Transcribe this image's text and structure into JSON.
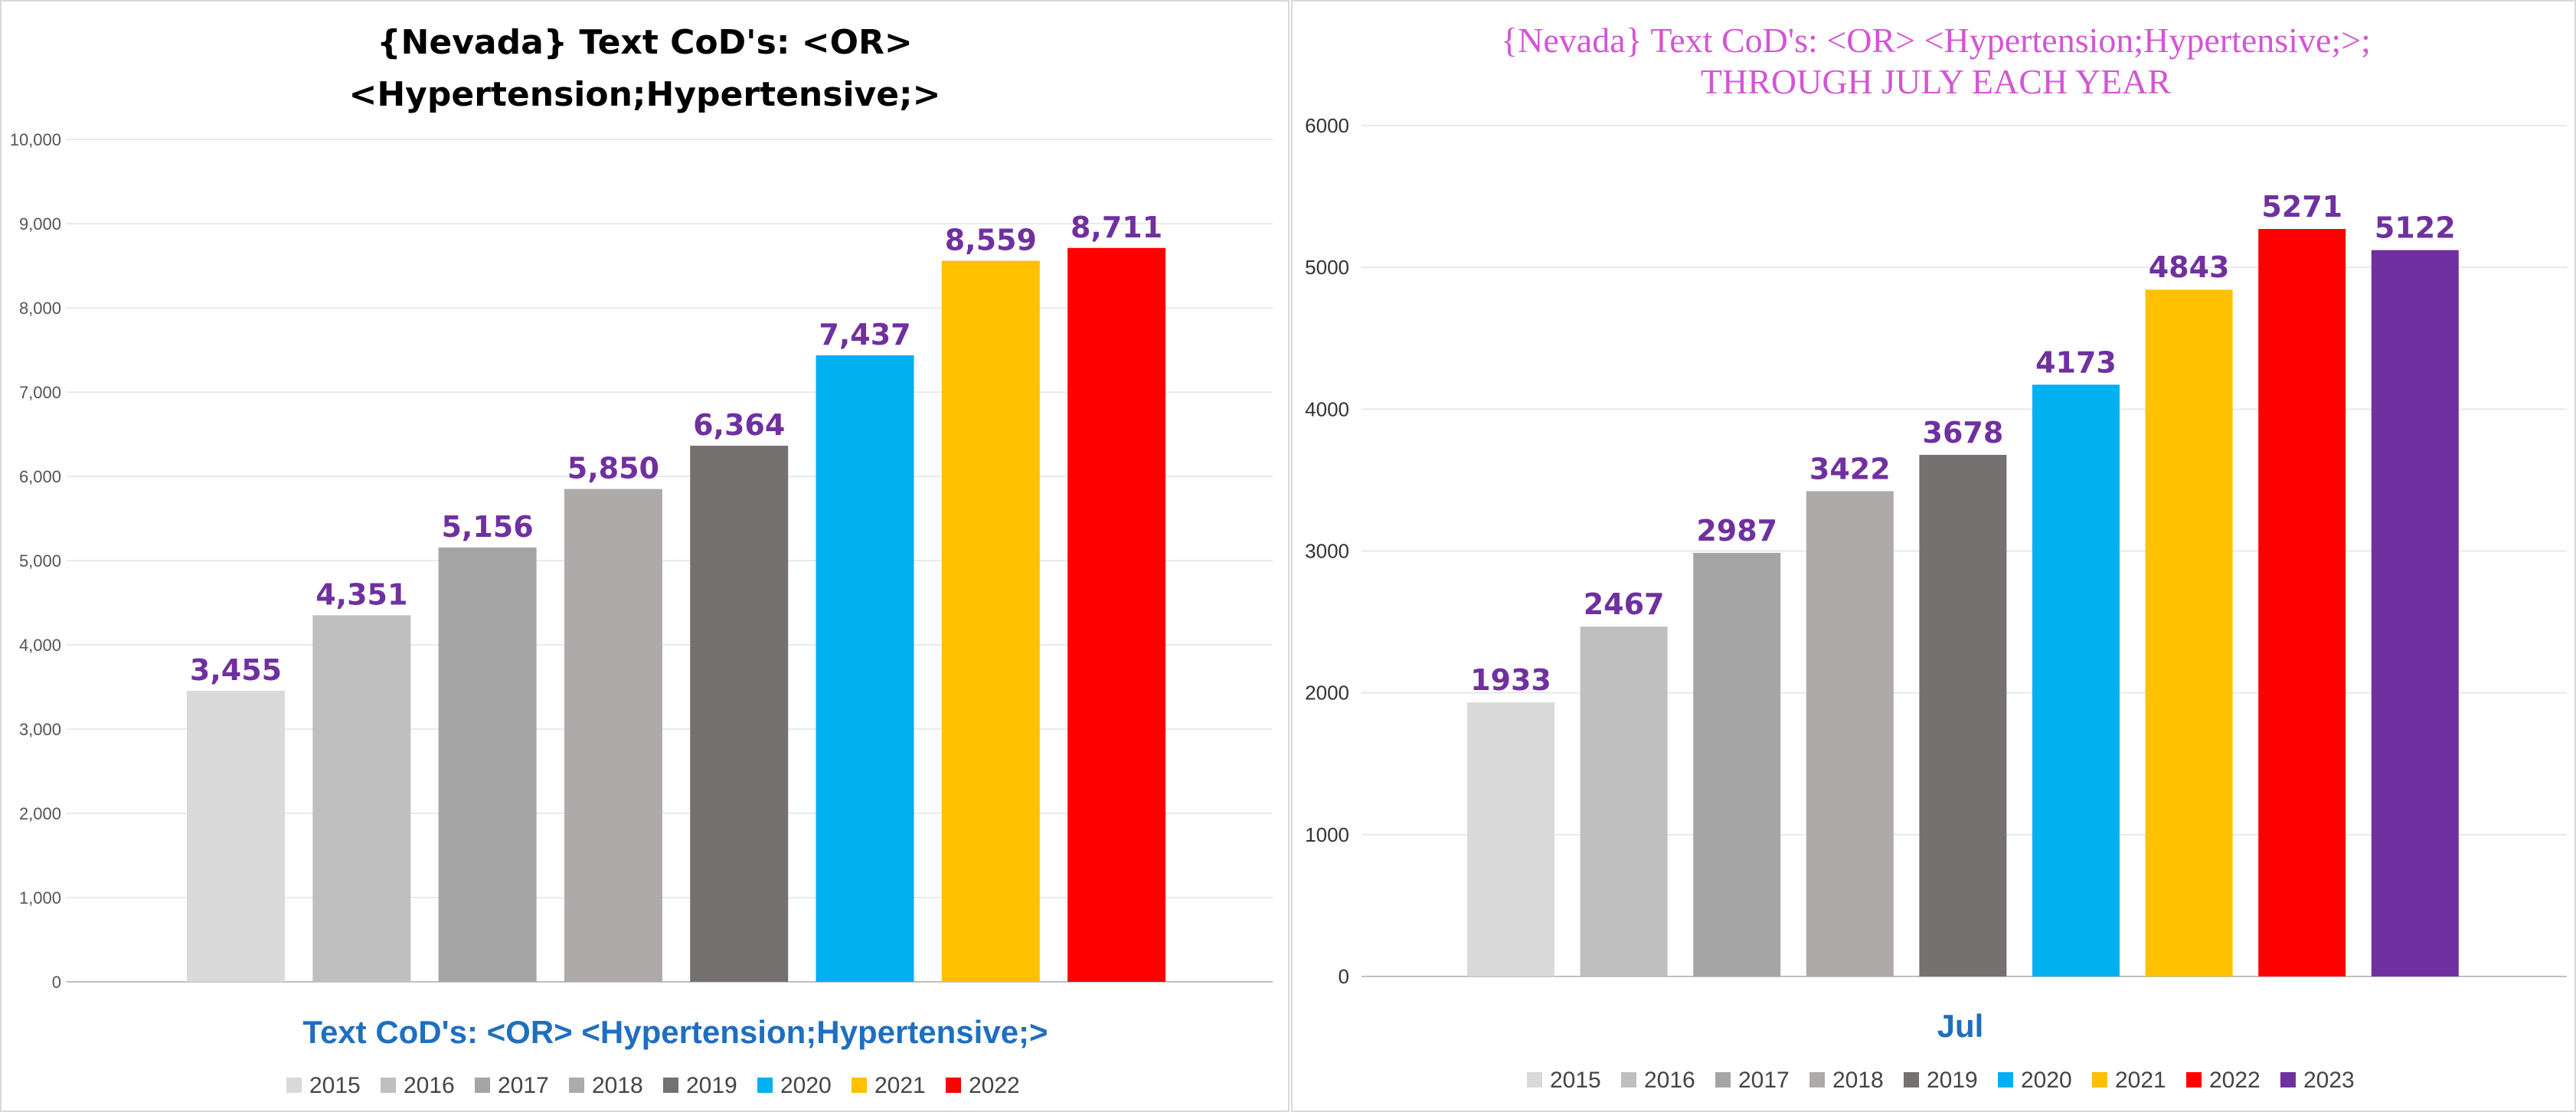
{
  "chart_data": [
    {
      "type": "bar",
      "title": [
        "{Nevada}  Text CoD's: <OR>",
        "<Hypertension;Hypertensive;>"
      ],
      "xlabel": "Text CoD's: <OR> <Hypertension;Hypertensive;>",
      "ylabel": "",
      "ylim": [
        0,
        10000
      ],
      "yticks": [
        "0",
        "1,000",
        "2,000",
        "3,000",
        "4,000",
        "5,000",
        "6,000",
        "7,000",
        "8,000",
        "9,000",
        "10,000"
      ],
      "ytick_values": [
        0,
        1000,
        2000,
        3000,
        4000,
        5000,
        6000,
        7000,
        8000,
        9000,
        10000
      ],
      "categories": [
        "2015",
        "2016",
        "2017",
        "2018",
        "2019",
        "2020",
        "2021",
        "2022"
      ],
      "values": [
        3455,
        4351,
        5156,
        5850,
        6364,
        7437,
        8559,
        8711
      ],
      "value_labels": [
        "3,455",
        "4,351",
        "5,156",
        "5,850",
        "6,364",
        "7,437",
        "8,559",
        "8,711"
      ],
      "colors": [
        "#d9d9d9",
        "#bfbfbf",
        "#a5a5a5",
        "#aeaaaa",
        "#767171",
        "#00b0f0",
        "#ffc000",
        "#ff0000"
      ],
      "legend": [
        "2015",
        "2016",
        "2017",
        "2018",
        "2019",
        "2020",
        "2021",
        "2022"
      ],
      "legend_position": "bottom",
      "grid": true
    },
    {
      "type": "bar",
      "title": [
        "{Nevada}   Text CoD's: <OR> <Hypertension;Hypertensive;>;",
        "THROUGH JULY EACH YEAR"
      ],
      "xlabel": "Jul",
      "ylabel": "",
      "ylim": [
        0,
        6000
      ],
      "yticks": [
        "0",
        "1000",
        "2000",
        "3000",
        "4000",
        "5000",
        "6000"
      ],
      "ytick_values": [
        0,
        1000,
        2000,
        3000,
        4000,
        5000,
        6000
      ],
      "categories": [
        "2015",
        "2016",
        "2017",
        "2018",
        "2019",
        "2020",
        "2021",
        "2022",
        "2023"
      ],
      "values": [
        1933,
        2467,
        2987,
        3422,
        3678,
        4173,
        4843,
        5271,
        5122
      ],
      "value_labels": [
        "1933",
        "2467",
        "2987",
        "3422",
        "3678",
        "4173",
        "4843",
        "5271",
        "5122"
      ],
      "colors": [
        "#d9d9d9",
        "#bfbfbf",
        "#a5a5a5",
        "#aeaaaa",
        "#767171",
        "#00b0f0",
        "#ffc000",
        "#ff0000",
        "#7030a0"
      ],
      "legend": [
        "2015",
        "2016",
        "2017",
        "2018",
        "2019",
        "2020",
        "2021",
        "2022",
        "2023"
      ],
      "legend_position": "bottom",
      "grid": true
    }
  ]
}
